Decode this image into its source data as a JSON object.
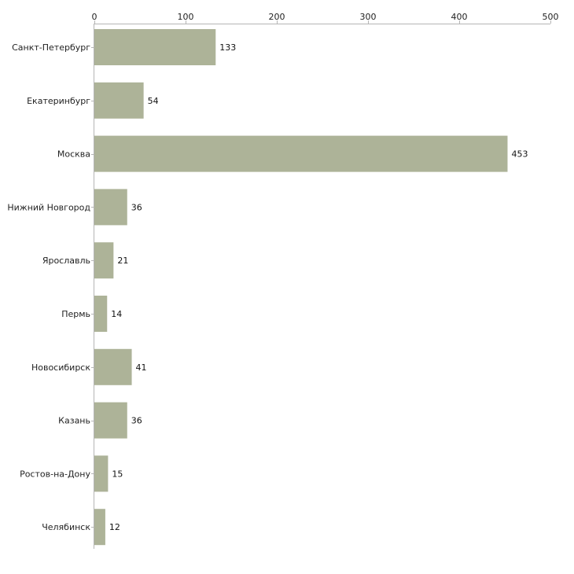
{
  "chart_data": {
    "type": "bar",
    "orientation": "horizontal",
    "title": "",
    "xlabel": "",
    "ylabel": "",
    "xlim": [
      0,
      500
    ],
    "ticks": [
      0,
      100,
      200,
      300,
      400,
      500
    ],
    "tick_labels": [
      "0",
      "100",
      "200",
      "300",
      "400",
      "500"
    ],
    "axis_position": "top",
    "grid": false,
    "bar_color": "#adb398",
    "categories": [
      "Санкт-Петербург",
      "Екатеринбург",
      "Москва",
      "Нижний Новгород",
      "Ярославль",
      "Пермь",
      "Новосибирск",
      "Казань",
      "Ростов-на-Дону",
      "Челябинск"
    ],
    "values": [
      133,
      54,
      453,
      36,
      21,
      14,
      41,
      36,
      15,
      12
    ],
    "value_labels": [
      "133",
      "54",
      "453",
      "36",
      "21",
      "14",
      "41",
      "36",
      "15",
      "12"
    ]
  }
}
